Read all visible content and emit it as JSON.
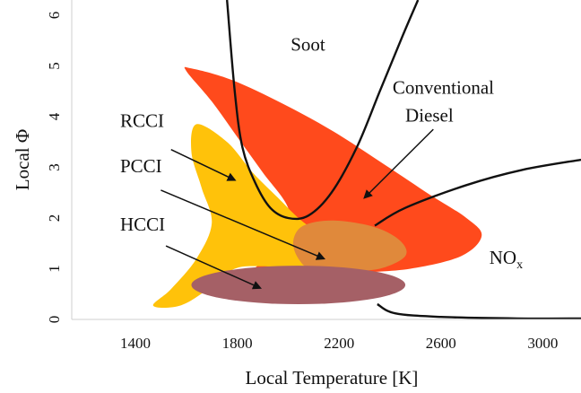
{
  "chart_data": {
    "type": "area",
    "xlabel": "Local Temperature [K]",
    "ylabel": "Local Φ",
    "xlim": [
      1150,
      3150
    ],
    "ylim": [
      0,
      6.3
    ],
    "x_ticks": [
      "1400",
      "1800",
      "2200",
      "2600",
      "3000"
    ],
    "y_ticks": [
      "0",
      "1",
      "2",
      "3",
      "4",
      "5",
      "6"
    ],
    "grid": false,
    "regions": [
      {
        "label": "Conventional Diesel",
        "color": "#ff4a1c",
        "outline": [
          [
            1620,
            4.95
          ],
          [
            1780,
            4.72
          ],
          [
            1980,
            4.25
          ],
          [
            2180,
            3.7
          ],
          [
            2380,
            3.05
          ],
          [
            2560,
            2.45
          ],
          [
            2700,
            2.0
          ],
          [
            2760,
            1.65
          ],
          [
            2680,
            1.25
          ],
          [
            2480,
            1.0
          ],
          [
            2250,
            0.9
          ],
          [
            2120,
            0.75
          ],
          [
            2080,
            0.45
          ],
          [
            1920,
            0.42
          ],
          [
            1780,
            0.48
          ],
          [
            1740,
            0.5
          ],
          [
            1840,
            0.9
          ],
          [
            2000,
            1.6
          ],
          [
            2000,
            2.2
          ],
          [
            1900,
            2.9
          ],
          [
            1800,
            3.6
          ],
          [
            1700,
            4.3
          ],
          [
            1600,
            4.9
          ]
        ]
      },
      {
        "label": "RCCI",
        "color": "#ffc20a",
        "outline": [
          [
            1640,
            3.85
          ],
          [
            1760,
            3.5
          ],
          [
            1860,
            2.9
          ],
          [
            1960,
            2.4
          ],
          [
            2040,
            2.0
          ],
          [
            2160,
            1.5
          ],
          [
            2150,
            1.15
          ],
          [
            2060,
            1.0
          ],
          [
            1900,
            1.05
          ],
          [
            1790,
            1.0
          ],
          [
            1700,
            0.65
          ],
          [
            1580,
            0.28
          ],
          [
            1470,
            0.27
          ],
          [
            1540,
            0.6
          ],
          [
            1640,
            1.2
          ],
          [
            1700,
            1.9
          ],
          [
            1660,
            2.6
          ],
          [
            1620,
            3.3
          ]
        ]
      },
      {
        "label": "PCCI",
        "color": "#e0893b",
        "outline": [
          [
            2060,
            1.85
          ],
          [
            2180,
            1.95
          ],
          [
            2340,
            1.82
          ],
          [
            2440,
            1.55
          ],
          [
            2460,
            1.25
          ],
          [
            2360,
            1.0
          ],
          [
            2220,
            0.95
          ],
          [
            2100,
            0.95
          ],
          [
            2040,
            1.2
          ],
          [
            2020,
            1.55
          ]
        ]
      },
      {
        "label": "HCCI",
        "color": "#a56066",
        "shape": "ellipse",
        "center": [
          2040,
          0.68
        ],
        "radii": [
          420,
          0.38
        ]
      }
    ],
    "boundaries": [
      {
        "label": "Soot",
        "points": [
          [
            1760,
            6.3
          ],
          [
            1790,
            4.5
          ],
          [
            1820,
            3.4
          ],
          [
            1870,
            2.7
          ],
          [
            1930,
            2.2
          ],
          [
            2000,
            2.0
          ],
          [
            2080,
            2.05
          ],
          [
            2170,
            2.5
          ],
          [
            2270,
            3.4
          ],
          [
            2360,
            4.5
          ],
          [
            2450,
            5.6
          ],
          [
            2510,
            6.3
          ]
        ]
      },
      {
        "label": "NOx",
        "points": [
          [
            2340,
            1.85
          ],
          [
            2460,
            2.2
          ],
          [
            2700,
            2.65
          ],
          [
            2920,
            2.95
          ],
          [
            3150,
            3.15
          ]
        ]
      },
      {
        "label": "",
        "points": [
          [
            2350,
            0.3
          ],
          [
            2420,
            0.12
          ],
          [
            2600,
            0.05
          ],
          [
            2900,
            0.02
          ],
          [
            3150,
            0.02
          ]
        ]
      }
    ],
    "annotations": [
      {
        "text": "Soot",
        "x": 2010,
        "y": 5.3
      },
      {
        "text": "Conventional",
        "x": 2410,
        "y": 4.45
      },
      {
        "text": "Diesel",
        "x": 2460,
        "y": 3.9
      },
      {
        "text": "RCCI",
        "x": 1340,
        "y": 3.8
      },
      {
        "text": "PCCI",
        "x": 1340,
        "y": 2.9
      },
      {
        "text": "HCCI",
        "x": 1340,
        "y": 1.75
      },
      {
        "text": "NO",
        "sub": "x",
        "x": 2790,
        "y": 1.1
      }
    ],
    "arrows": [
      {
        "from": [
          1540,
          3.35
        ],
        "to": [
          1790,
          2.75
        ]
      },
      {
        "from": [
          1500,
          2.55
        ],
        "to": [
          2140,
          1.2
        ]
      },
      {
        "from": [
          1520,
          1.45
        ],
        "to": [
          1890,
          0.62
        ]
      },
      {
        "from": [
          2570,
          3.75
        ],
        "to": [
          2300,
          2.4
        ]
      }
    ]
  }
}
